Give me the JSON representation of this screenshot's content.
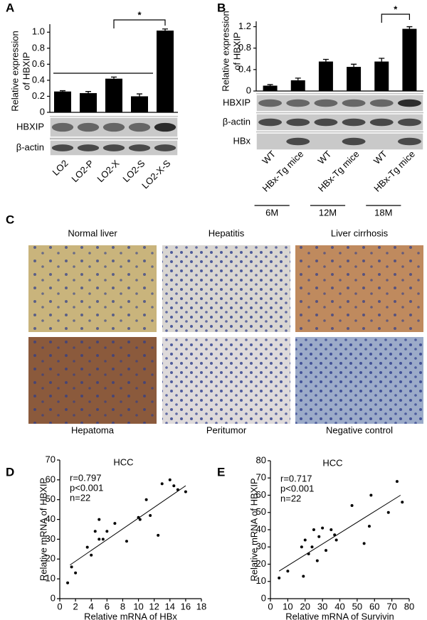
{
  "chart_data": [
    {
      "type": "bar",
      "panel": "A",
      "ylabel": [
        "Relative expression",
        "of HBXIP"
      ],
      "categories": [
        "LO2",
        "LO2-P",
        "LO2-X",
        "LO2-S",
        "LO2-X-S"
      ],
      "values": [
        0.26,
        0.24,
        0.42,
        0.2,
        1.02
      ],
      "errors": [
        0.01,
        0.02,
        0.02,
        0.03,
        0.02
      ],
      "color": "#000000",
      "ylim": [
        0,
        1.1
      ],
      "yticks": [
        0,
        0.2,
        0.4,
        0.6,
        0.8,
        {
          "value": 1,
          "label": "1.0"
        }
      ],
      "significance": "*",
      "blots": [
        "HBXIP",
        "β-actin"
      ]
    },
    {
      "type": "bar",
      "panel": "B",
      "ylabel": [
        "Relative expression",
        "of HBXIP"
      ],
      "categories": [
        "WT",
        "HBx-Tg mice",
        "WT",
        "HBx-Tg mice",
        "WT",
        "HBx-Tg mice"
      ],
      "values": [
        0.1,
        0.2,
        0.55,
        0.45,
        0.55,
        1.16
      ],
      "errors": [
        0.02,
        0.04,
        0.04,
        0.05,
        0.06,
        0.04
      ],
      "color": "#000000",
      "ylim": [
        0,
        1.3
      ],
      "yticks": [
        0,
        0.4,
        0.8,
        1.2
      ],
      "significance": "*",
      "blots": [
        "HBXIP",
        "β-actin",
        "HBx"
      ],
      "groups": [
        "6M",
        "12M",
        "18M"
      ]
    },
    {
      "type": "scatter",
      "panel": "D",
      "title": "HCC",
      "annotations": [
        "r=0.797",
        "p<0.001",
        "n=22"
      ],
      "xlabel": "Relative mRNA of HBx",
      "ylabel": "Relative mRNA of HBXIP",
      "x": [
        1,
        1.5,
        2,
        3.5,
        4,
        4.5,
        5,
        5,
        5.5,
        6,
        7,
        8.5,
        10,
        10.2,
        11,
        11.5,
        12.5,
        13,
        14,
        14.5,
        15,
        16
      ],
      "values": [
        8,
        16,
        13,
        26,
        22,
        34,
        30,
        40,
        30,
        34,
        38,
        29,
        41,
        40,
        50,
        42,
        32,
        58,
        60,
        57,
        55,
        54
      ],
      "trendline": {
        "x": [
          1.3,
          16
        ],
        "values": [
          17,
          57
        ]
      },
      "color": "#000000",
      "xlim": [
        0,
        18
      ],
      "xticks": [
        0,
        2,
        4,
        6,
        8,
        10,
        12,
        14,
        16,
        18
      ],
      "ylim": [
        0,
        70
      ],
      "yticks": [
        0,
        10,
        20,
        30,
        40,
        50,
        60,
        70
      ]
    },
    {
      "type": "scatter",
      "panel": "E",
      "title": "HCC",
      "annotations": [
        "r=0.717",
        "p<0.001",
        "n=22"
      ],
      "xlabel": "Relative mRNA of Survivin",
      "ylabel": "Relative mRNA of HBXIP",
      "x": [
        5,
        10,
        18,
        19,
        20,
        22,
        24,
        25,
        27,
        28,
        30,
        32,
        35,
        37,
        38,
        47,
        54,
        57,
        58,
        68,
        73,
        76
      ],
      "values": [
        12,
        16,
        30,
        13,
        34,
        26,
        30,
        40,
        22,
        36,
        41,
        28,
        40,
        37,
        34,
        54,
        32,
        42,
        60,
        50,
        68,
        56
      ],
      "trendline": {
        "x": [
          5,
          75
        ],
        "values": [
          16,
          60
        ]
      },
      "color": "#000000",
      "xlim": [
        0,
        80
      ],
      "xticks": [
        0,
        10,
        20,
        30,
        40,
        50,
        60,
        70,
        80
      ],
      "ylim": [
        0,
        80
      ],
      "yticks": [
        0,
        10,
        20,
        30,
        40,
        50,
        60,
        70,
        80
      ]
    }
  ],
  "panel_c": {
    "letter": "C",
    "images": [
      "Normal liver",
      "Hepatitis",
      "Liver cirrhosis",
      "Hepatoma",
      "Peritumor",
      "Negative control"
    ]
  }
}
